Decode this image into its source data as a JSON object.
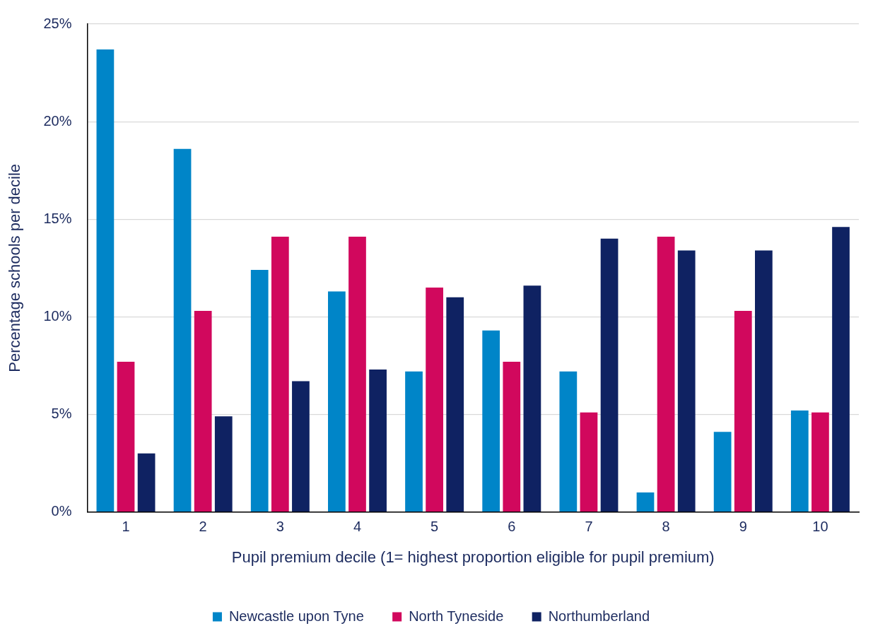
{
  "chart_data": {
    "type": "bar",
    "xlabel": "Pupil premium decile (1= highest proportion eligible for pupil premium)",
    "ylabel": "Percentage schools per decile",
    "categories": [
      "1",
      "2",
      "3",
      "4",
      "5",
      "6",
      "7",
      "8",
      "9",
      "10"
    ],
    "series": [
      {
        "name": "Newcastle upon Tyne",
        "color": "#0085c8",
        "values": [
          23.7,
          18.6,
          12.4,
          11.3,
          7.2,
          9.3,
          7.2,
          1.0,
          4.1,
          5.2
        ]
      },
      {
        "name": "North Tyneside",
        "color": "#d1085d",
        "values": [
          7.7,
          10.3,
          14.1,
          14.1,
          11.5,
          7.7,
          5.1,
          14.1,
          10.3,
          5.1
        ]
      },
      {
        "name": "Northumberland",
        "color": "#0f2262",
        "values": [
          3.0,
          4.9,
          6.7,
          7.3,
          11.0,
          11.6,
          14.0,
          13.4,
          13.4,
          14.6
        ]
      }
    ],
    "ylim": [
      0,
      25
    ],
    "yticks": [
      {
        "value": 0,
        "label": "0%"
      },
      {
        "value": 5,
        "label": "5%"
      },
      {
        "value": 10,
        "label": "10%"
      },
      {
        "value": 15,
        "label": "15%"
      },
      {
        "value": 20,
        "label": "20%"
      },
      {
        "value": 25,
        "label": "25%"
      }
    ],
    "grid": "y",
    "legend": "bottom"
  }
}
